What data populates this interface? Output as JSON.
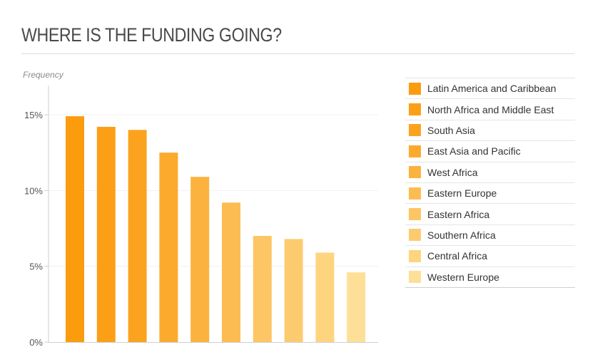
{
  "page": {
    "title": "WHERE IS THE FUNDING GOING?"
  },
  "chart_data": {
    "type": "bar",
    "ylabel": "Frequency",
    "yticks": [
      "0%",
      "5%",
      "10%",
      "15%"
    ],
    "ylim": [
      0,
      17
    ],
    "grid": true,
    "legend_position": "right",
    "categories": [
      "Latin America and Caribbean",
      "North Africa and Middle East",
      "South Asia",
      "East Asia and Pacific",
      "West Africa",
      "Eastern Europe",
      "Eastern Africa",
      "Southern Africa",
      "Central Africa",
      "Western Europe"
    ],
    "values": [
      14.9,
      14.2,
      14.0,
      12.5,
      10.9,
      9.2,
      7.0,
      6.8,
      5.9,
      4.6
    ],
    "colors": [
      "#fb9c0f",
      "#fb9f17",
      "#fba31f",
      "#fcaa2d",
      "#fcb23e",
      "#fdbc52",
      "#fdc563",
      "#fdcb6f",
      "#fed47f",
      "#fedf98"
    ]
  }
}
